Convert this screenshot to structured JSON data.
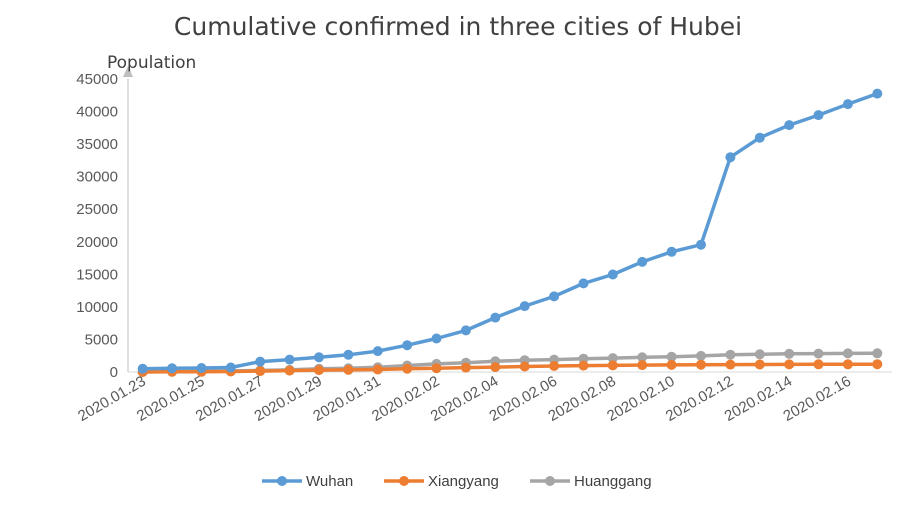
{
  "chart_data": {
    "type": "line",
    "title": "Cumulative confirmed in three cities of Hubei",
    "ylabel": "Population",
    "xlabel": "",
    "ylim": [
      0,
      45000
    ],
    "ytick_step": 5000,
    "yticks": [
      "0",
      "5000",
      "10000",
      "15000",
      "20000",
      "25000",
      "30000",
      "35000",
      "40000",
      "45000"
    ],
    "grid": false,
    "legend": "bottom",
    "x": [
      "2020.01.23",
      "2020.01.24",
      "2020.01.25",
      "2020.01.26",
      "2020.01.27",
      "2020.01.28",
      "2020.01.29",
      "2020.01.30",
      "2020.01.31",
      "2020.02.01",
      "2020.02.02",
      "2020.02.03",
      "2020.02.04",
      "2020.02.05",
      "2020.02.06",
      "2020.02.07",
      "2020.02.08",
      "2020.02.09",
      "2020.02.10",
      "2020.02.11",
      "2020.02.12",
      "2020.02.13",
      "2020.02.14",
      "2020.02.15",
      "2020.02.16",
      "2020.02.17"
    ],
    "xtick_labels": [
      "2020.01.23",
      "2020.01.25",
      "2020.01.27",
      "2020.01.29",
      "2020.01.31",
      "2020.02.02",
      "2020.02.04",
      "2020.02.06",
      "2020.02.08",
      "2020.02.10",
      "2020.02.12",
      "2020.02.14",
      "2020.02.16"
    ],
    "series": [
      {
        "name": "Wuhan",
        "color": "#5b9bd5",
        "values": [
          495,
          572,
          618,
          698,
          1590,
          1905,
          2261,
          2639,
          3215,
          4109,
          5142,
          6384,
          8351,
          10117,
          11618,
          13603,
          14982,
          16902,
          18454,
          19558,
          32994,
          35991,
          37914,
          39462,
          41152,
          42752
        ]
      },
      {
        "name": "Xiangyang",
        "color": "#ed7d31",
        "values": [
          0,
          36,
          36,
          70,
          139,
          212,
          286,
          327,
          387,
          513,
          591,
          678,
          755,
          845,
          919,
          982,
          1019,
          1066,
          1098,
          1115,
          1133,
          1153,
          1170,
          1182,
          1190,
          1193
        ]
      },
      {
        "name": "Huanggang",
        "color": "#a5a5a5",
        "values": [
          12,
          64,
          122,
          153,
          253,
          324,
          496,
          573,
          726,
          1002,
          1246,
          1422,
          1645,
          1807,
          1897,
          2041,
          2141,
          2252,
          2332,
          2469,
          2662,
          2721,
          2789,
          2831,
          2857,
          2870
        ]
      }
    ]
  }
}
